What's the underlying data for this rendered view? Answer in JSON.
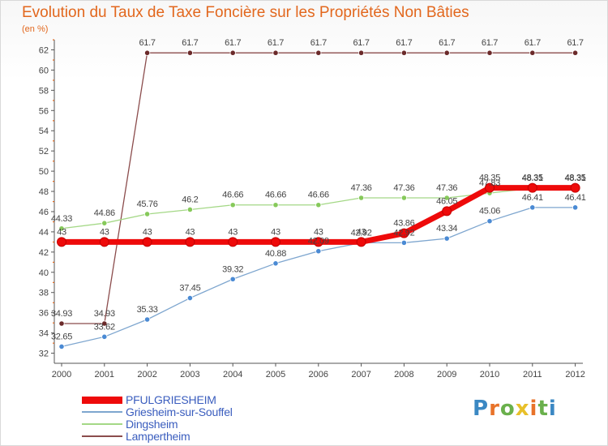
{
  "chart_data": {
    "type": "line",
    "title": "Evolution du Taux de Taxe Foncière sur les Propriétés Non Bâties",
    "ylabel": "(en %)",
    "xlabel": "",
    "categories": [
      "2000",
      "2001",
      "2002",
      "2003",
      "2004",
      "2005",
      "2006",
      "2007",
      "2008",
      "2009",
      "2010",
      "2011",
      "2012"
    ],
    "ylim": [
      31,
      63
    ],
    "yticks": [
      32,
      34,
      36,
      38,
      40,
      42,
      44,
      46,
      48,
      50,
      52,
      54,
      56,
      58,
      60,
      62
    ],
    "grid": false,
    "legend_position": "bottom-left",
    "series": [
      {
        "name": "PFULGRIESHEIM",
        "color": "#ee0a0a",
        "values": [
          43,
          43,
          43,
          43,
          43,
          43,
          43,
          43,
          43.86,
          46.05,
          48.35,
          48.35,
          48.35
        ],
        "labels": [
          "43",
          "43",
          "43",
          "43",
          "43",
          "43",
          "43",
          "43",
          "43.86",
          "46.05",
          "48.35",
          "48.35",
          "48.35"
        ]
      },
      {
        "name": "Griesheim-sur-Souffel",
        "color": "#7ea6cf",
        "values": [
          32.65,
          33.62,
          35.33,
          37.45,
          39.32,
          40.88,
          42.09,
          42.92,
          42.92,
          43.34,
          45.06,
          46.41,
          46.41
        ],
        "labels": [
          "32.65",
          "33.62",
          "35.33",
          "37.45",
          "39.32",
          "40.88",
          "42.09",
          "42.92",
          "42.92",
          "43.34",
          "45.06",
          "46.41",
          "46.41"
        ]
      },
      {
        "name": "Dingsheim",
        "color": "#a4d886",
        "values": [
          44.33,
          44.86,
          45.76,
          46.2,
          46.66,
          46.66,
          46.66,
          47.36,
          47.36,
          47.36,
          47.83,
          48.31,
          48.31
        ],
        "labels": [
          "44.33",
          "44.86",
          "45.76",
          "46.2",
          "46.66",
          "46.66",
          "46.66",
          "47.36",
          "47.36",
          "47.36",
          "47.83",
          "48.31",
          "48.31"
        ]
      },
      {
        "name": "Lampertheim",
        "color": "#8b4c4c",
        "values": [
          34.93,
          34.93,
          61.7,
          61.7,
          61.7,
          61.7,
          61.7,
          61.7,
          61.7,
          61.7,
          61.7,
          61.7,
          61.7
        ],
        "labels": [
          "34.93",
          "34.93",
          "61.7",
          "61.7",
          "61.7",
          "61.7",
          "61.7",
          "61.7",
          "61.7",
          "61.7",
          "61.7",
          "61.7",
          "61.7"
        ]
      }
    ]
  },
  "logo": {
    "letters": [
      "P",
      "r",
      "o",
      "x",
      "i",
      "t",
      "i"
    ],
    "colors": [
      "#3b88c3",
      "#e8732a",
      "#6ab04c",
      "#e8c02a",
      "#e8732a",
      "#6ab04c",
      "#3b88c3"
    ]
  }
}
